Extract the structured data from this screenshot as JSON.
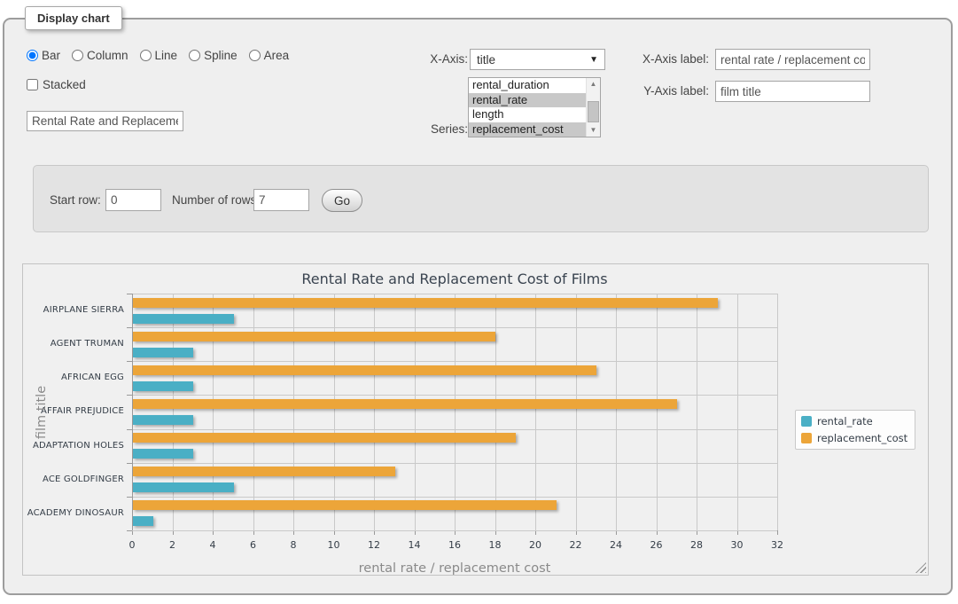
{
  "fieldset": {
    "legend": "Display chart"
  },
  "chart_type": {
    "options": [
      {
        "label": "Bar",
        "selected": true
      },
      {
        "label": "Column",
        "selected": false
      },
      {
        "label": "Line",
        "selected": false
      },
      {
        "label": "Spline",
        "selected": false
      },
      {
        "label": "Area",
        "selected": false
      }
    ]
  },
  "stacked": {
    "label": "Stacked",
    "checked": false
  },
  "chart_title_input": {
    "value": "Rental Rate and Replacement Cost of Films"
  },
  "x_axis_select": {
    "label": "X-Axis:",
    "value": "title"
  },
  "series_list": {
    "label": "Series:",
    "options": [
      {
        "label": "rental_duration",
        "selected": false
      },
      {
        "label": "rental_rate",
        "selected": true
      },
      {
        "label": "length",
        "selected": false
      },
      {
        "label": "replacement_cost",
        "selected": true
      }
    ]
  },
  "x_axis_label_input": {
    "label": "X-Axis label:",
    "value": "rental rate / replacement cost"
  },
  "y_axis_label_input": {
    "label": "Y-Axis label:",
    "value": "film title"
  },
  "row_form": {
    "start_row_label": "Start row:",
    "start_row_value": "0",
    "rows_label": "Number of rows:",
    "rows_value": "7",
    "go_label": "Go"
  },
  "icons": {
    "dropdown_arrow": "▼",
    "scroll_up_arrow": "▲",
    "scroll_down_arrow": "▼"
  },
  "chart_data": {
    "type": "bar",
    "orientation": "horizontal",
    "title": "Rental Rate and Replacement Cost of Films",
    "categories": [
      "AIRPLANE SIERRA",
      "AGENT TRUMAN",
      "AFRICAN EGG",
      "AFFAIR PREJUDICE",
      "ADAPTATION HOLES",
      "ACE GOLDFINGER",
      "ACADEMY DINOSAUR"
    ],
    "series": [
      {
        "name": "rental_rate",
        "color": "#4aafc5",
        "values": [
          4.99,
          2.99,
          2.99,
          2.99,
          2.99,
          4.99,
          0.99
        ]
      },
      {
        "name": "replacement_cost",
        "color": "#eca539",
        "values": [
          28.99,
          17.99,
          22.99,
          26.99,
          18.99,
          12.99,
          20.99
        ]
      }
    ],
    "bar_draw_order": [
      "replacement_cost",
      "rental_rate"
    ],
    "xlabel": "rental rate / replacement cost",
    "ylabel": "film title",
    "xlim": [
      0,
      32
    ],
    "x_tick_step": 2,
    "grid": true,
    "legend_position": "right",
    "colors": {
      "grid_line": "#c9c9c9",
      "axis_line": "#9a9a9a",
      "label": "#333c46",
      "axis_title": "#8a8a8a"
    }
  }
}
